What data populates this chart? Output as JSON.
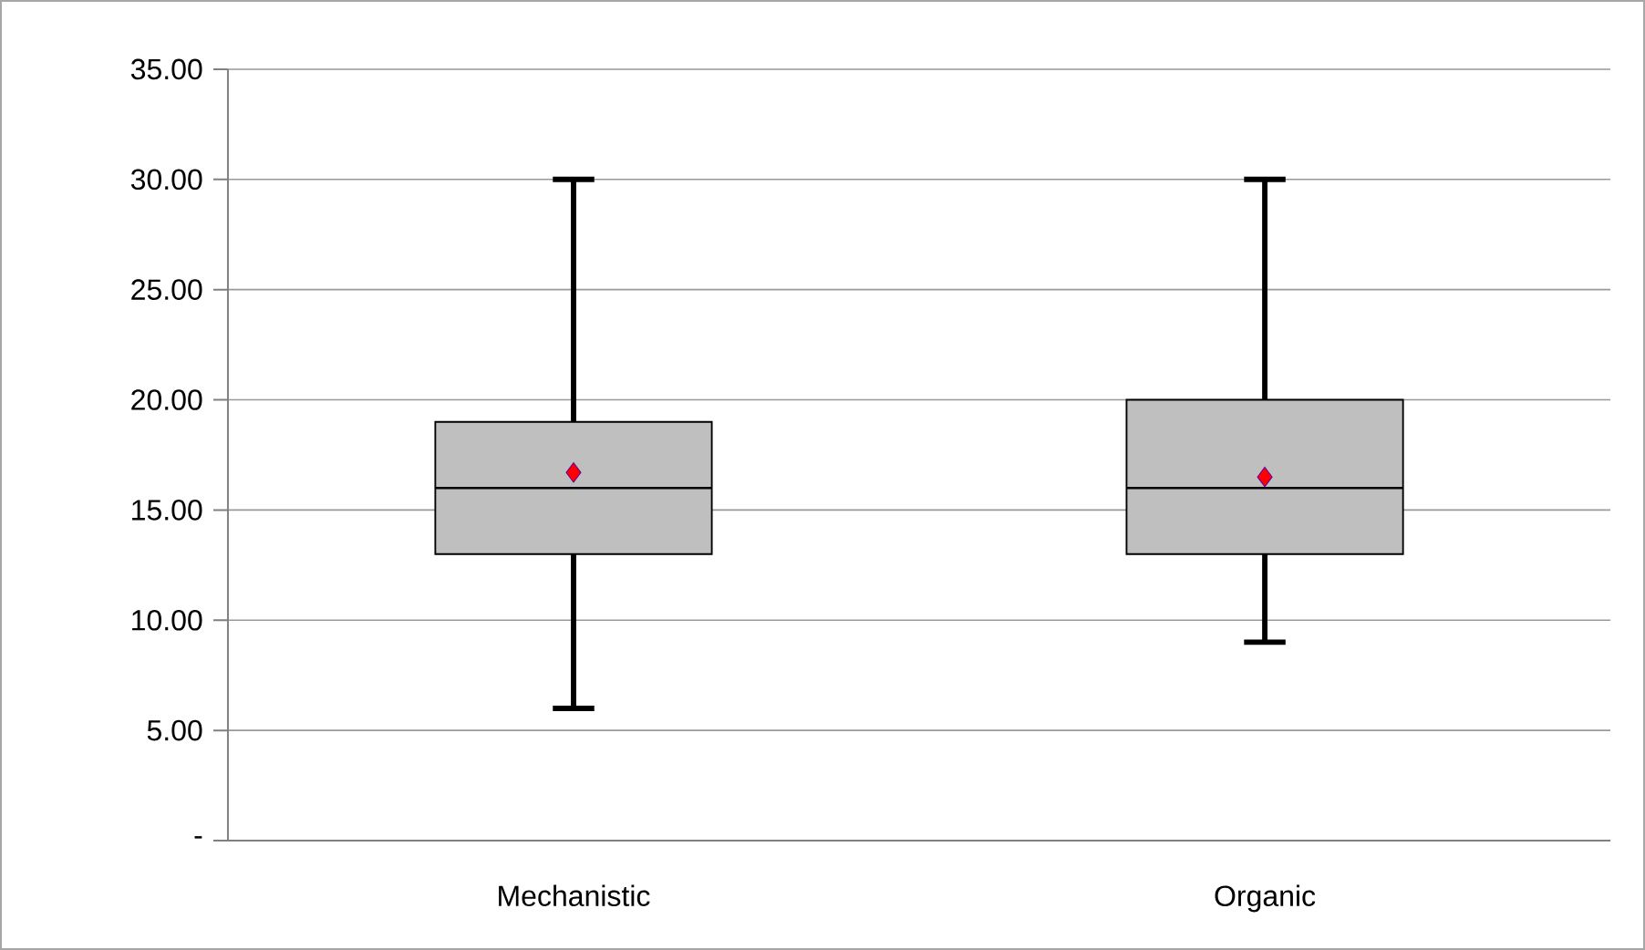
{
  "chart_data": {
    "type": "box",
    "categories": [
      "Mechanistic",
      "Organic"
    ],
    "color": "#bfbfbf",
    "boxes": [
      {
        "low": 6,
        "q1": 13,
        "median": 16,
        "q3": 19,
        "high": 30,
        "mean": 16.7
      },
      {
        "low": 9,
        "q1": 13,
        "median": 16,
        "q3": 20,
        "high": 30,
        "mean": 16.5
      }
    ],
    "ylim": [
      0,
      35
    ],
    "yticks": [
      {
        "value": 0,
        "label": "-"
      },
      {
        "value": 5,
        "label": "5.00"
      },
      {
        "value": 10,
        "label": "10.00"
      },
      {
        "value": 15,
        "label": "15.00"
      },
      {
        "value": 20,
        "label": "20.00"
      },
      {
        "value": 25,
        "label": "25.00"
      },
      {
        "value": 30,
        "label": "30.00"
      },
      {
        "value": 35,
        "label": "35.00"
      }
    ],
    "grid": "y"
  }
}
